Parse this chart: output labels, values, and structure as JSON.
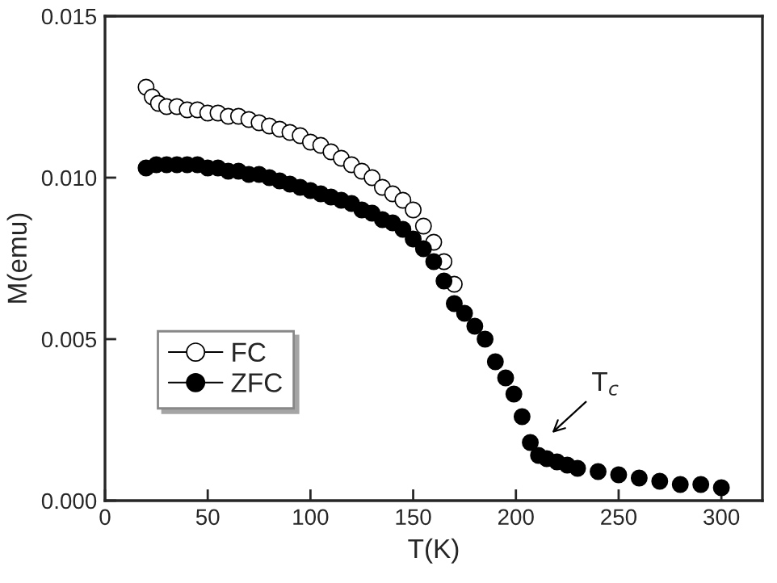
{
  "chart_data": {
    "type": "scatter",
    "xlabel": "T(K)",
    "ylabel": "M(emu)",
    "xlim": [
      0,
      320
    ],
    "xticks": [
      0,
      50,
      100,
      150,
      200,
      250,
      300
    ],
    "ylim": [
      0,
      0.015
    ],
    "yticks": [
      {
        "value": 0,
        "label": "0.000"
      },
      {
        "value": 0.005,
        "label": "0.005"
      },
      {
        "value": 0.01,
        "label": "0.010"
      },
      {
        "value": 0.015,
        "label": "0.015"
      }
    ],
    "grid": false,
    "legend": "center left",
    "marker": "circle",
    "annotations": [
      "T$_{c}$"
    ],
    "series": [
      {
        "name": "FC",
        "color": "#ffffff",
        "x": [
          20,
          23,
          26,
          30,
          35,
          40,
          45,
          50,
          55,
          60,
          65,
          70,
          75,
          80,
          85,
          90,
          95,
          100,
          105,
          110,
          115,
          120,
          125,
          130,
          135,
          140,
          145,
          150,
          155,
          160,
          165,
          170
        ],
        "values": [
          0.0128,
          0.0125,
          0.0123,
          0.0122,
          0.0122,
          0.0121,
          0.0121,
          0.012,
          0.012,
          0.0119,
          0.0119,
          0.0118,
          0.0117,
          0.0116,
          0.0115,
          0.0114,
          0.0113,
          0.0111,
          0.011,
          0.0108,
          0.0106,
          0.0104,
          0.0102,
          0.01,
          0.0097,
          0.0095,
          0.0093,
          0.009,
          0.0085,
          0.008,
          0.0074,
          0.0067
        ]
      },
      {
        "name": "ZFC",
        "color": "#000000",
        "x": [
          20,
          25,
          30,
          35,
          40,
          45,
          50,
          55,
          60,
          65,
          70,
          75,
          80,
          85,
          90,
          95,
          100,
          105,
          110,
          115,
          120,
          125,
          130,
          135,
          140,
          145,
          150,
          155,
          160,
          165,
          170,
          175,
          180,
          185,
          190,
          195,
          199,
          203,
          207,
          211,
          215,
          220,
          225,
          230,
          240,
          250,
          260,
          270,
          280,
          290,
          300
        ],
        "values": [
          0.0103,
          0.0104,
          0.0104,
          0.0104,
          0.0104,
          0.0104,
          0.0103,
          0.0103,
          0.0102,
          0.0102,
          0.0101,
          0.0101,
          0.01,
          0.0099,
          0.0098,
          0.0097,
          0.0096,
          0.0095,
          0.0094,
          0.0093,
          0.0092,
          0.009,
          0.0089,
          0.0087,
          0.0086,
          0.0084,
          0.0081,
          0.0078,
          0.0074,
          0.0068,
          0.0061,
          0.0058,
          0.0054,
          0.005,
          0.0043,
          0.0038,
          0.0033,
          0.0026,
          0.0018,
          0.0014,
          0.0013,
          0.0012,
          0.0011,
          0.001,
          0.0009,
          0.0008,
          0.0007,
          0.0006,
          0.0005,
          0.0005,
          0.0004
        ]
      }
    ]
  }
}
